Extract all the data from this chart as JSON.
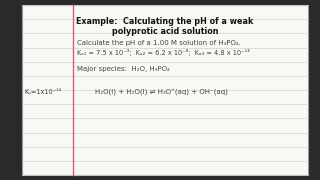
{
  "bg_outer": "#2a2a2a",
  "bg_paper": "#f8f8f4",
  "line_color": "#d0d0d0",
  "red_line_color": "#cc6677",
  "title_line1": "Example:  Calculating the pH of a weak",
  "title_line2": "polyprotic acid solution",
  "body_line1": "Calculate the pH of a 1.00 M solution of H₃PO₄.",
  "body_line2": "Kₐ₁ = 7.5 x 10⁻³;  Kₐ₂ = 6.2 x 10⁻⁸;  Kₐ₃ = 4.8 x 10⁻¹³",
  "body_line3": "Major species:  H₂O, H₃PO₄",
  "kw_label": "Kᵤ=1x10⁻¹⁴",
  "equation": "H₂O(l) + H₂O(l) ⇌ H₃O⁺(aq) + OH⁻(aq)",
  "text_color": "#444444",
  "title_color": "#111111"
}
